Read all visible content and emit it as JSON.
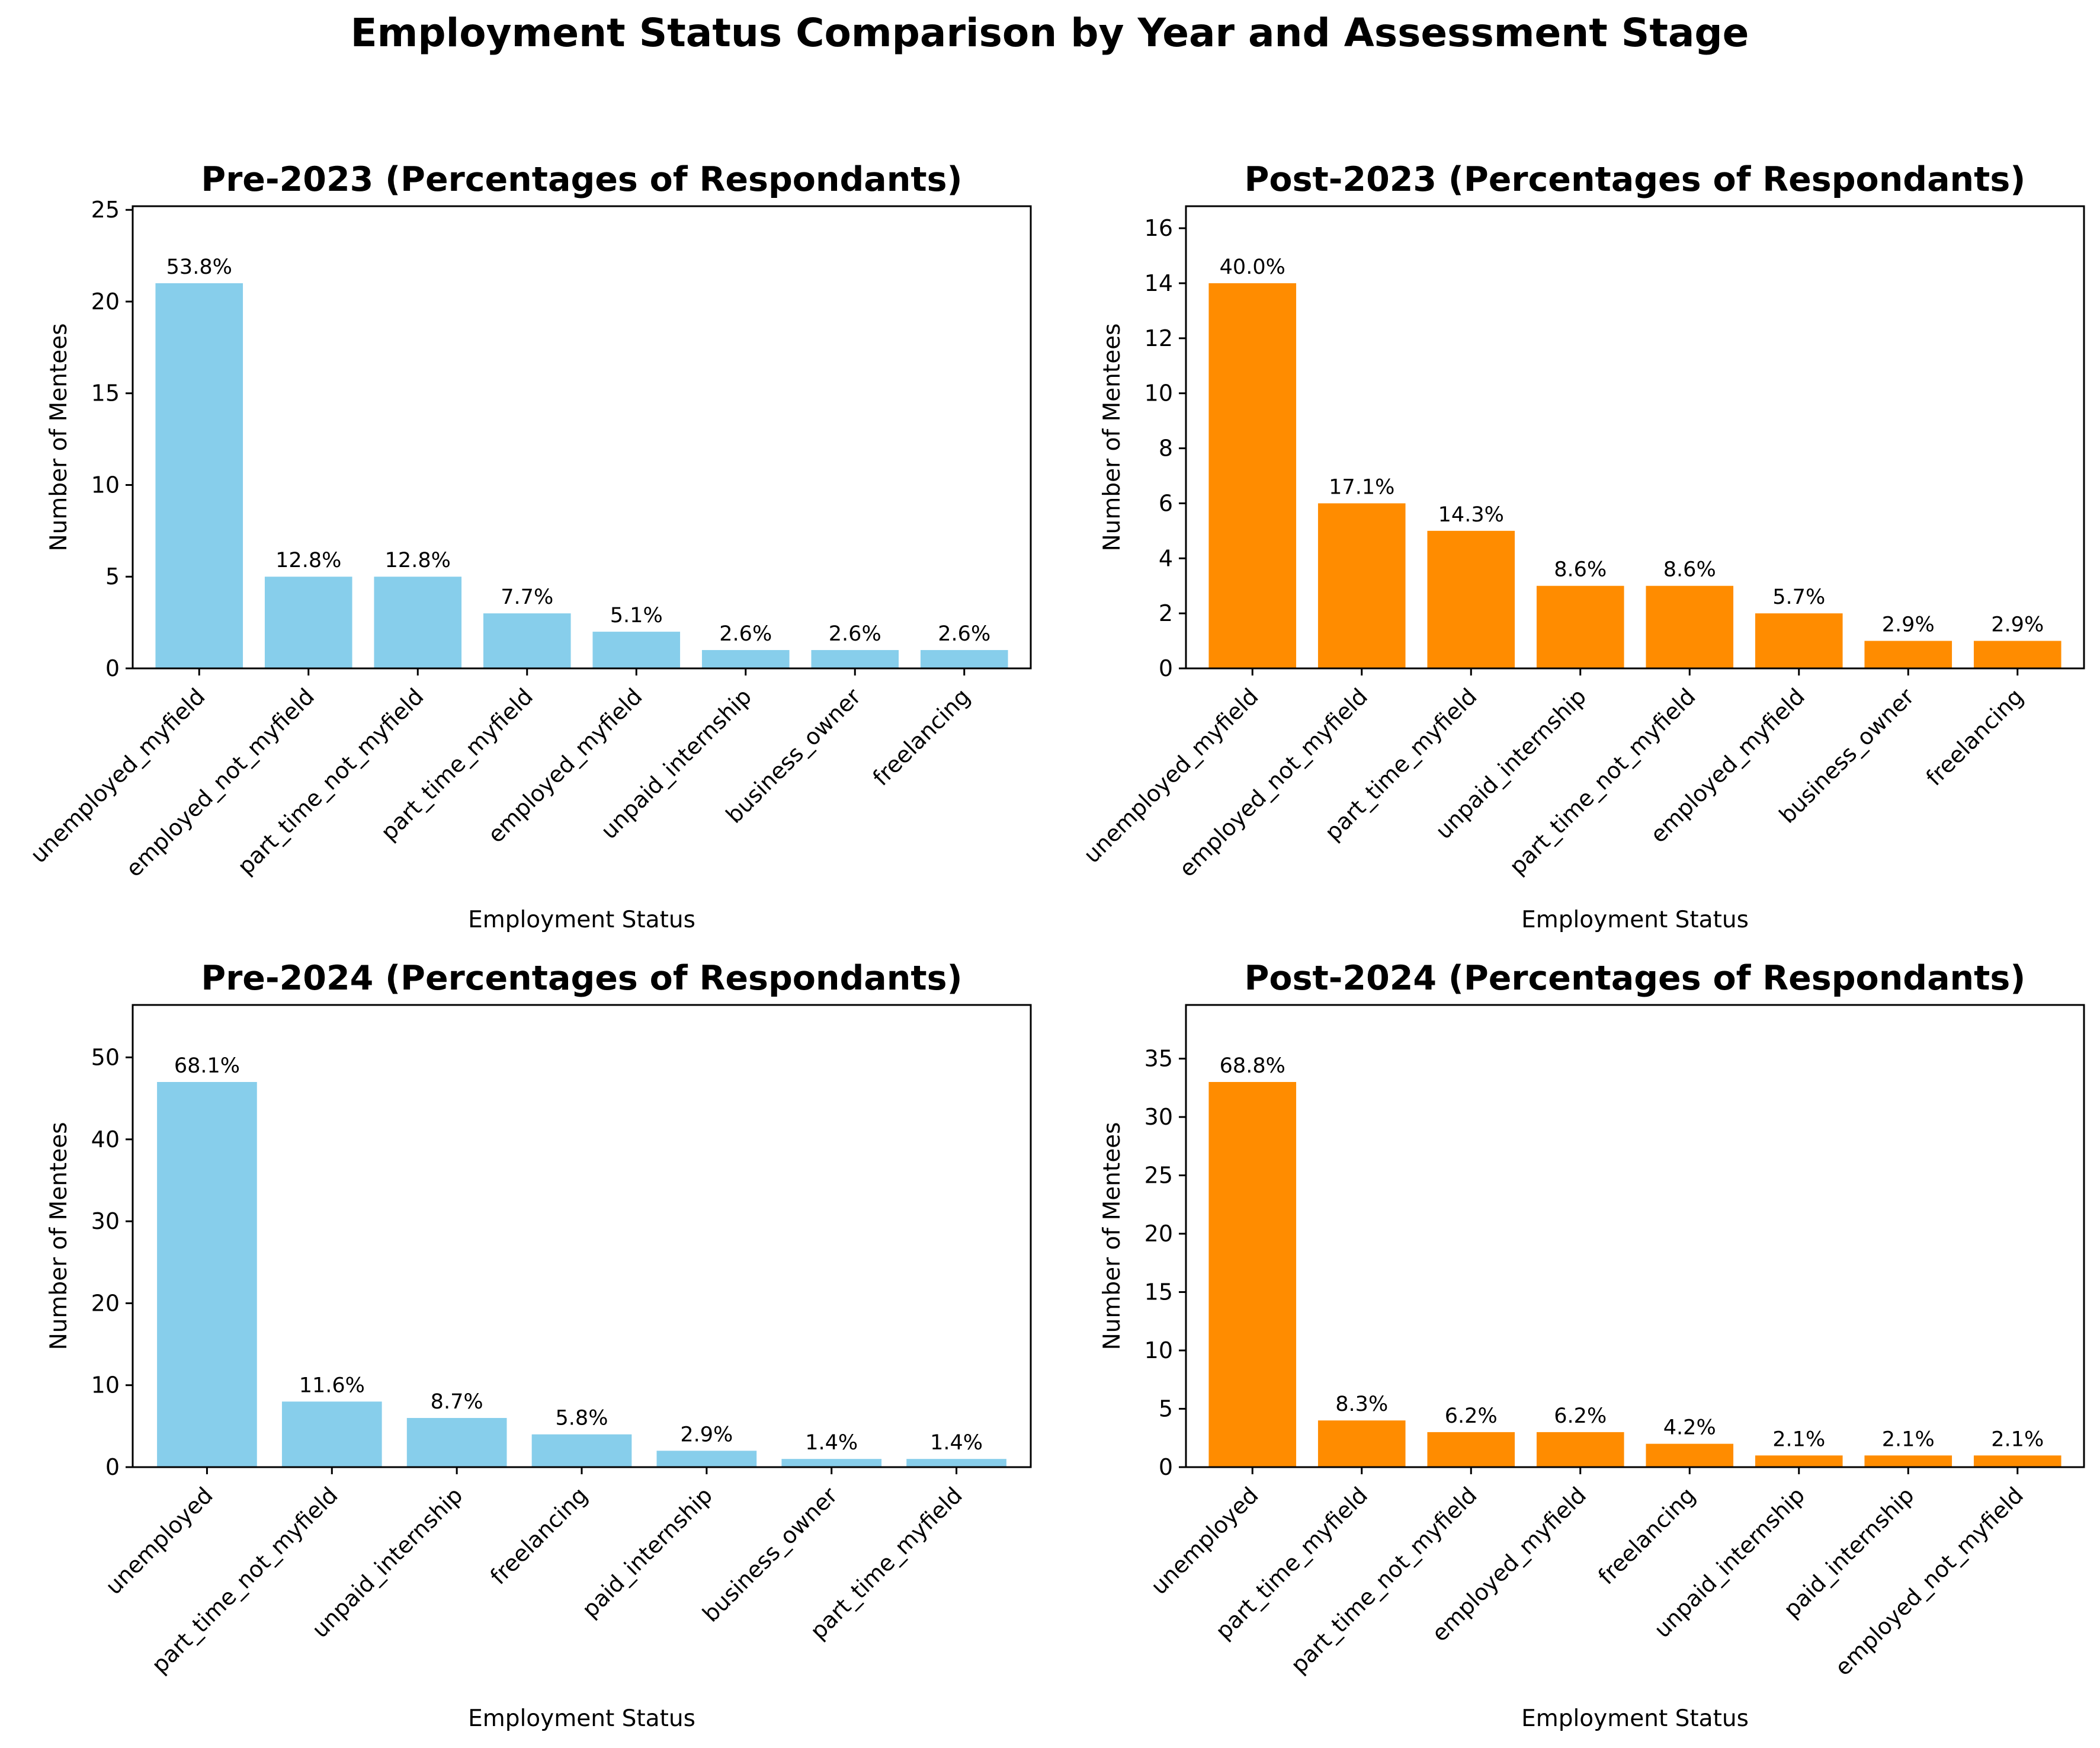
{
  "figure": {
    "title": "Employment Status Comparison by Year and Assessment Stage"
  },
  "colors": {
    "pre": "#87CEEB",
    "post": "#FF8C00"
  },
  "chart_data": [
    {
      "type": "bar",
      "title": "Pre-2023 (Percentages of Respondants)",
      "xlabel": "Employment Status",
      "ylabel": "Number of Mentees",
      "color": "#87CEEB",
      "ylim": [
        0,
        25.2
      ],
      "yticks": [
        0,
        5,
        10,
        15,
        20,
        25
      ],
      "categories": [
        "unemployed_myfield",
        "employed_not_myfield",
        "part_time_not_myfield",
        "part_time_myfield",
        "employed_myfield",
        "unpaid_internship",
        "business_owner",
        "freelancing"
      ],
      "values": [
        21,
        5,
        5,
        3,
        2,
        1,
        1,
        1
      ],
      "labels": [
        "53.8%",
        "12.8%",
        "12.8%",
        "7.7%",
        "5.1%",
        "2.6%",
        "2.6%",
        "2.6%"
      ]
    },
    {
      "type": "bar",
      "title": "Post-2023 (Percentages of Respondants)",
      "xlabel": "Employment Status",
      "ylabel": "Number of Mentees",
      "color": "#FF8C00",
      "ylim": [
        0,
        16.8
      ],
      "yticks": [
        0,
        2,
        4,
        6,
        8,
        10,
        12,
        14,
        16
      ],
      "categories": [
        "unemployed_myfield",
        "employed_not_myfield",
        "part_time_myfield",
        "unpaid_internship",
        "part_time_not_myfield",
        "employed_myfield",
        "business_owner",
        "freelancing"
      ],
      "values": [
        14,
        6,
        5,
        3,
        3,
        2,
        1,
        1
      ],
      "labels": [
        "40.0%",
        "17.1%",
        "14.3%",
        "8.6%",
        "8.6%",
        "5.7%",
        "2.9%",
        "2.9%"
      ]
    },
    {
      "type": "bar",
      "title": "Pre-2024 (Percentages of Respondants)",
      "xlabel": "Employment Status",
      "ylabel": "Number of Mentees",
      "color": "#87CEEB",
      "ylim": [
        0,
        56.4
      ],
      "yticks": [
        0,
        10,
        20,
        30,
        40,
        50
      ],
      "categories": [
        "unemployed",
        "part_time_not_myfield",
        "unpaid_internship",
        "freelancing",
        "paid_internship",
        "business_owner",
        "part_time_myfield"
      ],
      "values": [
        47,
        8,
        6,
        4,
        2,
        1,
        1
      ],
      "labels": [
        "68.1%",
        "11.6%",
        "8.7%",
        "5.8%",
        "2.9%",
        "1.4%",
        "1.4%"
      ]
    },
    {
      "type": "bar",
      "title": "Post-2024 (Percentages of Respondants)",
      "xlabel": "Employment Status",
      "ylabel": "Number of Mentees",
      "color": "#FF8C00",
      "ylim": [
        0,
        39.6
      ],
      "yticks": [
        0,
        5,
        10,
        15,
        20,
        25,
        30,
        35
      ],
      "categories": [
        "unemployed",
        "part_time_myfield",
        "part_time_not_myfield",
        "employed_myfield",
        "freelancing",
        "unpaid_internship",
        "paid_internship",
        "employed_not_myfield"
      ],
      "values": [
        33,
        4,
        3,
        3,
        2,
        1,
        1,
        1
      ],
      "labels": [
        "68.8%",
        "8.3%",
        "6.2%",
        "6.2%",
        "4.2%",
        "2.1%",
        "2.1%",
        "2.1%"
      ]
    }
  ]
}
